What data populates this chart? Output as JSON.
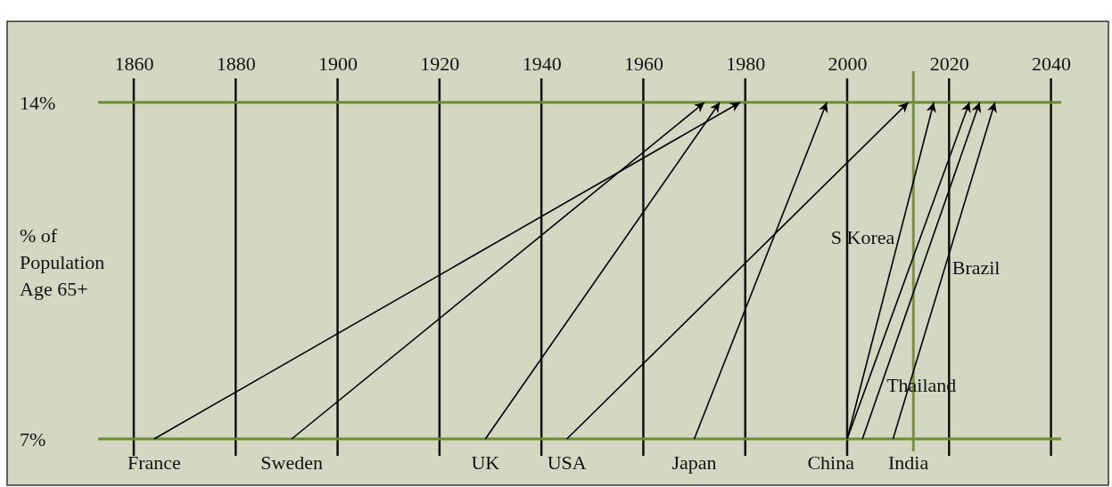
{
  "chart_data": {
    "type": "line",
    "ylabel": "% of Population Age 65+",
    "xlim": [
      1853,
      2042
    ],
    "xticks": [
      1860,
      1880,
      1900,
      1920,
      1940,
      1960,
      1980,
      2000,
      2020,
      2040
    ],
    "ylim": [
      7,
      14
    ],
    "yticks": [
      {
        "value": 7,
        "label": "7%"
      },
      {
        "value": 14,
        "label": "14%"
      }
    ],
    "grid": true,
    "marker": "none",
    "series": [
      {
        "name": "France",
        "color": "#000000",
        "x": [
          1864,
          1979
        ],
        "values": [
          7,
          14
        ]
      },
      {
        "name": "Sweden",
        "color": "#000000",
        "x": [
          1891,
          1972
        ],
        "values": [
          7,
          14
        ]
      },
      {
        "name": "UK",
        "color": "#000000",
        "x": [
          1929,
          1975
        ],
        "values": [
          7,
          14
        ]
      },
      {
        "name": "USA",
        "color": "#000000",
        "x": [
          1945,
          2012
        ],
        "values": [
          7,
          14
        ]
      },
      {
        "name": "Japan",
        "color": "#000000",
        "x": [
          1970,
          1996
        ],
        "values": [
          7,
          14
        ]
      },
      {
        "name": "China",
        "color": "#000000",
        "x": [
          2000,
          2024
        ],
        "values": [
          7,
          14
        ]
      },
      {
        "name": "S Korea",
        "color": "#000000",
        "x": [
          2000,
          2017
        ],
        "values": [
          7,
          14
        ]
      },
      {
        "name": "Thailand",
        "color": "#000000",
        "x": [
          2003,
          2026
        ],
        "values": [
          7,
          14
        ]
      },
      {
        "name": "Brazil",
        "color": "#000000",
        "x": [
          2009,
          2029
        ],
        "values": [
          7,
          14
        ]
      }
    ],
    "annotations": [
      {
        "text": "India",
        "x": 2012,
        "y": 7
      }
    ],
    "ref_lines": [
      {
        "axis": "x",
        "value": 2013,
        "color": "#77933c"
      }
    ]
  }
}
